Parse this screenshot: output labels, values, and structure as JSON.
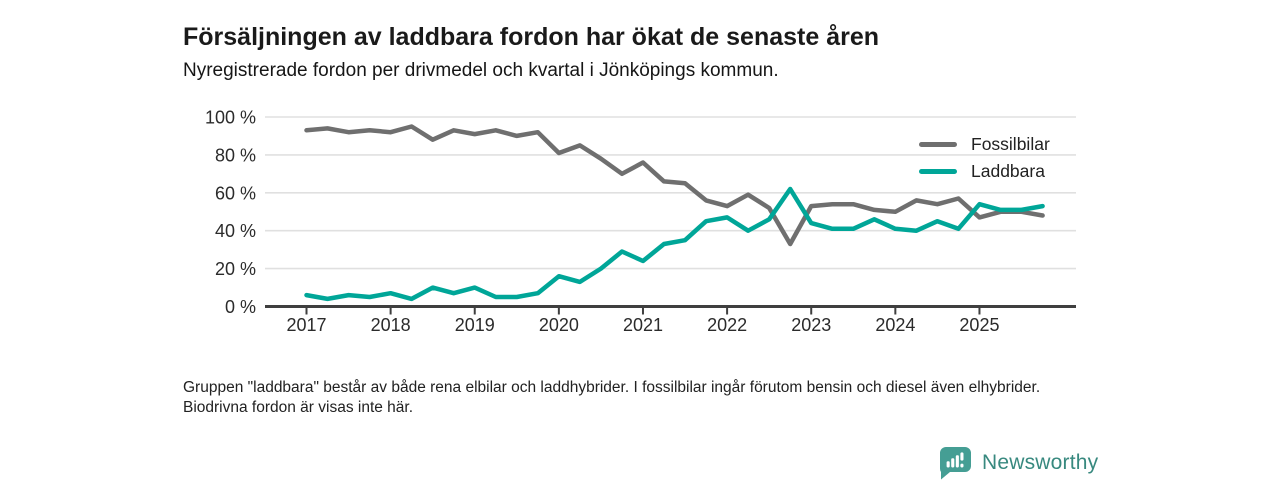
{
  "header": {
    "title": "Försäljningen av laddbara fordon har ökat de senaste åren",
    "subtitle": "Nyregistrerade fordon per drivmedel och kvartal i Jönköpings kommun."
  },
  "chart_data": {
    "type": "line",
    "title": "Försäljningen av laddbara fordon har ökat de senaste åren",
    "subtitle": "Nyregistrerade fordon per drivmedel och kvartal i Jönköpings kommun.",
    "x_unit": "quarter",
    "x_years": [
      "2017",
      "2018",
      "2019",
      "2020",
      "2021",
      "2022",
      "2023",
      "2024",
      "2025"
    ],
    "quarters_per_year": 4,
    "series": [
      {
        "name": "Fossilbilar",
        "color": "#6f6f6f",
        "values": [
          93,
          94,
          92,
          93,
          92,
          95,
          88,
          93,
          91,
          93,
          90,
          92,
          81,
          85,
          78,
          70,
          76,
          66,
          65,
          56,
          53,
          59,
          52,
          33,
          53,
          54,
          54,
          51,
          50,
          56,
          54,
          57,
          47,
          50,
          50,
          48
        ]
      },
      {
        "name": "Laddbara",
        "color": "#00a698",
        "values": [
          6,
          4,
          6,
          5,
          7,
          4,
          10,
          7,
          10,
          5,
          5,
          7,
          16,
          13,
          20,
          29,
          24,
          33,
          35,
          45,
          47,
          40,
          46,
          62,
          44,
          41,
          41,
          46,
          41,
          40,
          45,
          41,
          54,
          51,
          51,
          53
        ]
      }
    ],
    "ylim": [
      0,
      100
    ],
    "yticks": [
      0,
      20,
      40,
      60,
      80,
      100
    ],
    "ytick_suffix": " %",
    "grid": "horizontal",
    "legend_position": "top-right"
  },
  "footnote": "Gruppen \"laddbara\" består av både rena elbilar och laddhybrider. I fossilbilar ingår förutom bensin och diesel även elhybrider. Biodrivna fordon är visas inte här.",
  "branding": {
    "logo_text": "Newsworthy",
    "logo_icon": "bar-chart-speech-bubble-icon",
    "logo_color": "#459e94",
    "logo_text_color": "#38897f"
  },
  "colors": {
    "axis": "#3f3f3f",
    "gridline": "#e0e0e0",
    "tick_label": "#2b2b2b",
    "background": "#ffffff"
  }
}
